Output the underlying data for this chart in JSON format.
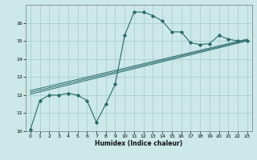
{
  "title": "",
  "xlabel": "Humidex (Indice chaleur)",
  "ylabel": "",
  "bg_color": "#cce8e8",
  "grid_color": "#aacfcf",
  "line_color": "#2a6b6b",
  "xlim": [
    -0.5,
    23.5
  ],
  "ylim": [
    10,
    17
  ],
  "yticks": [
    10,
    11,
    12,
    13,
    14,
    15,
    16
  ],
  "xticks": [
    0,
    1,
    2,
    3,
    4,
    5,
    6,
    7,
    8,
    9,
    10,
    11,
    12,
    13,
    14,
    15,
    16,
    17,
    18,
    19,
    20,
    21,
    22,
    23
  ],
  "series1_x": [
    0,
    1,
    2,
    3,
    4,
    5,
    6,
    7,
    8,
    9,
    10,
    11,
    12,
    13,
    14,
    15,
    16,
    17,
    18,
    19,
    20,
    21,
    22,
    23
  ],
  "series1_y": [
    10.1,
    11.7,
    12.0,
    12.0,
    12.1,
    12.0,
    11.7,
    10.5,
    11.5,
    12.6,
    15.3,
    16.6,
    16.6,
    16.4,
    16.1,
    15.5,
    15.5,
    14.9,
    14.8,
    14.85,
    15.3,
    15.1,
    15.0,
    15.0
  ],
  "series2_x": [
    0,
    23
  ],
  "series2_y": [
    12.05,
    15.0
  ],
  "series3_x": [
    0,
    23
  ],
  "series3_y": [
    12.15,
    15.05
  ],
  "series4_x": [
    0,
    23
  ],
  "series4_y": [
    12.25,
    15.1
  ]
}
